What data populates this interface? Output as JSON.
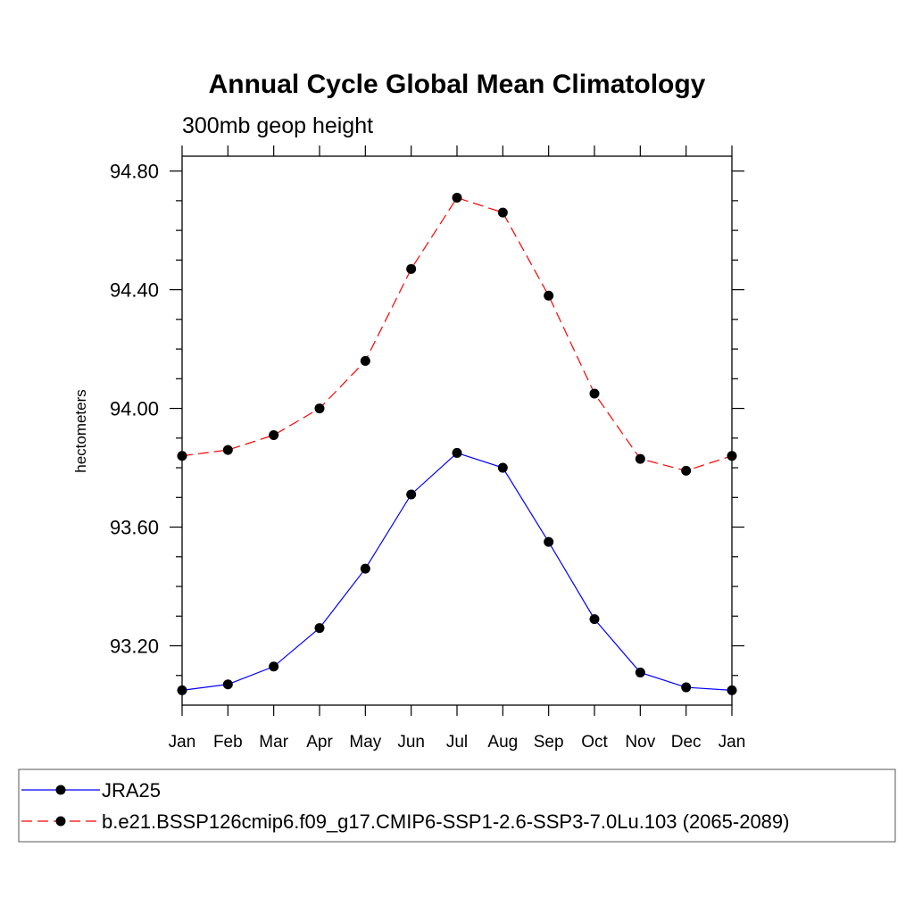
{
  "chart_data": {
    "type": "line",
    "title": "Annual Cycle Global Mean Climatology",
    "subtitle": "300mb geop height",
    "xlabel": "",
    "ylabel": "hectometers",
    "categories": [
      "Jan",
      "Feb",
      "Mar",
      "Apr",
      "May",
      "Jun",
      "Jul",
      "Aug",
      "Sep",
      "Oct",
      "Nov",
      "Dec",
      "Jan"
    ],
    "ylim": [
      93.0,
      94.85
    ],
    "yticks": [
      93.2,
      93.6,
      94.0,
      94.4,
      94.8
    ],
    "ytick_labels": [
      "93.20",
      "93.60",
      "94.00",
      "94.40",
      "94.80"
    ],
    "grid": false,
    "legend_position": "bottom",
    "series": [
      {
        "name": "JRA25",
        "color": "#0000ff",
        "dash": "solid",
        "values": [
          93.05,
          93.07,
          93.13,
          93.26,
          93.46,
          93.71,
          93.85,
          93.8,
          93.55,
          93.29,
          93.11,
          93.06,
          93.05
        ]
      },
      {
        "name": "b.e21.BSSP126cmip6.f09_g17.CMIP6-SSP1-2.6-SSP3-7.0Lu.103 (2065-2089)",
        "color": "#ff0000",
        "dash": "dashed",
        "values": [
          93.84,
          93.86,
          93.91,
          94.0,
          94.16,
          94.47,
          94.71,
          94.66,
          94.38,
          94.05,
          93.83,
          93.79,
          93.84
        ]
      }
    ]
  }
}
